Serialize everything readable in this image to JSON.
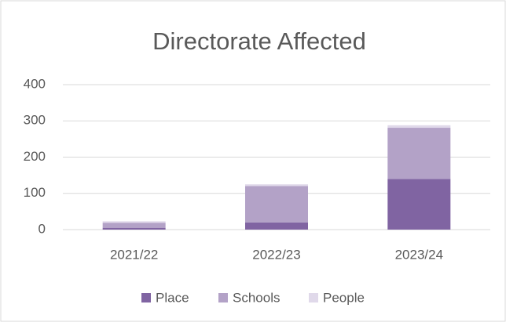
{
  "chart_data": {
    "type": "stacked_bar",
    "title": "Directorate Affected",
    "categories": [
      "2021/22",
      "2022/23",
      "2023/24"
    ],
    "series": [
      {
        "name": "Place",
        "color": "#8064a2",
        "values": [
          5,
          20,
          140
        ]
      },
      {
        "name": "Schools",
        "color": "#b3a2c7",
        "values": [
          14,
          100,
          141
        ]
      },
      {
        "name": "People",
        "color": "#e0d9ea",
        "values": [
          4,
          5,
          7
        ]
      }
    ],
    "ylim": [
      0,
      400
    ],
    "yticks": [
      0,
      100,
      200,
      300,
      400
    ],
    "grid": true,
    "legend": "bottom"
  }
}
